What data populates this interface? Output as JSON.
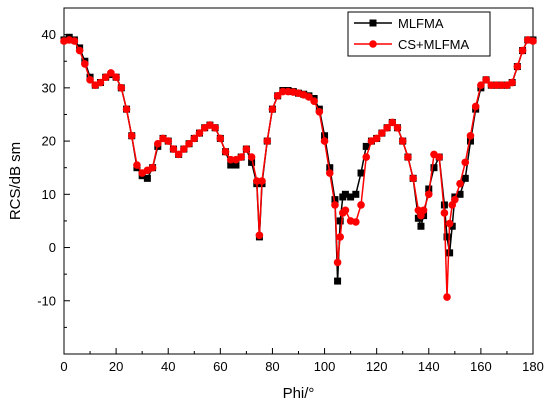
{
  "chart_data": {
    "type": "line",
    "title": "",
    "xlabel": "Phi/°",
    "ylabel": "RCS/dB sm",
    "xlim": [
      0,
      180
    ],
    "ylim": [
      -20,
      45
    ],
    "xticks": [
      "0",
      "20",
      "40",
      "60",
      "80",
      "100",
      "120",
      "140",
      "160",
      "180"
    ],
    "xtick_values": [
      0,
      20,
      40,
      60,
      80,
      100,
      120,
      140,
      160,
      180
    ],
    "yticks": [
      "-10",
      "0",
      "10",
      "20",
      "30",
      "40"
    ],
    "ytick_values": [
      -10,
      0,
      10,
      20,
      30,
      40
    ],
    "grid": false,
    "legend_position": "top-right",
    "series": [
      {
        "name": "MLFMA",
        "color": "#000000",
        "marker": "square",
        "x": [
          0,
          2,
          4,
          6,
          8,
          10,
          12,
          14,
          16,
          18,
          20,
          22,
          24,
          26,
          28,
          30,
          32,
          34,
          36,
          38,
          40,
          42,
          44,
          46,
          48,
          50,
          52,
          54,
          56,
          58,
          60,
          62,
          64,
          66,
          68,
          70,
          72,
          74,
          75,
          76,
          78,
          80,
          82,
          84,
          86,
          88,
          90,
          92,
          94,
          96,
          98,
          100,
          102,
          104,
          105,
          106,
          107,
          108,
          110,
          112,
          114,
          116,
          118,
          120,
          122,
          124,
          126,
          128,
          130,
          132,
          134,
          136,
          137,
          138,
          140,
          142,
          144,
          146,
          147,
          148,
          149,
          150,
          152,
          154,
          156,
          158,
          160,
          162,
          164,
          166,
          168,
          170,
          172,
          174,
          176,
          178,
          180
        ],
        "y": [
          39,
          39.5,
          39,
          37.5,
          35,
          32,
          30.5,
          31,
          32,
          32.5,
          32,
          30,
          26,
          21,
          15,
          13.5,
          13,
          15,
          19,
          20.5,
          20,
          18.5,
          17.5,
          18.5,
          19.5,
          20.5,
          21.5,
          22.5,
          23,
          22.5,
          20.5,
          18,
          15.5,
          15.5,
          17,
          18.5,
          16,
          12,
          2,
          12,
          20,
          26,
          28.5,
          29.5,
          29.5,
          29.3,
          29,
          28.8,
          28.5,
          28,
          26,
          21,
          15,
          9,
          -6.3,
          5,
          9.5,
          10,
          9.5,
          10,
          14,
          19,
          20,
          20.5,
          21.5,
          22.5,
          23.5,
          22.5,
          20,
          17,
          13,
          5.5,
          4,
          6,
          11,
          15,
          17,
          8,
          2,
          -1,
          4,
          9.5,
          10,
          13,
          20,
          26,
          30,
          31.5,
          30.5,
          30.5,
          30.5,
          30.5,
          31,
          34,
          37,
          39,
          39
        ]
      },
      {
        "name": "CS+MLFMA",
        "color": "#ff0000",
        "marker": "circle",
        "x": [
          0,
          2,
          4,
          6,
          8,
          10,
          12,
          14,
          16,
          18,
          20,
          22,
          24,
          26,
          28,
          30,
          32,
          34,
          36,
          38,
          40,
          42,
          44,
          46,
          48,
          50,
          52,
          54,
          56,
          58,
          60,
          62,
          64,
          66,
          68,
          70,
          72,
          74,
          75,
          76,
          78,
          80,
          82,
          84,
          86,
          88,
          90,
          92,
          94,
          96,
          98,
          100,
          102,
          104,
          105,
          106,
          107,
          108,
          110,
          112,
          114,
          116,
          118,
          120,
          122,
          124,
          126,
          128,
          130,
          132,
          134,
          136,
          137,
          138,
          140,
          142,
          144,
          146,
          147,
          148,
          149,
          150,
          152,
          154,
          156,
          158,
          160,
          162,
          164,
          166,
          168,
          170,
          172,
          174,
          176,
          178,
          180
        ],
        "y": [
          38.8,
          39,
          38.8,
          37,
          34.5,
          31.5,
          30.5,
          31,
          32,
          32.8,
          32,
          30,
          26,
          21,
          15.5,
          14,
          14.5,
          15,
          19.5,
          20.5,
          20,
          18.5,
          17.5,
          18.5,
          19.5,
          20.5,
          21.5,
          22.5,
          23,
          22.5,
          20.5,
          18,
          16.5,
          16.5,
          17,
          18.5,
          17,
          12.5,
          2.3,
          12.5,
          20,
          26,
          28.5,
          29.3,
          29.3,
          29.2,
          29,
          28.7,
          28.3,
          27.5,
          25.5,
          20,
          14,
          8,
          -2.8,
          2,
          6.5,
          7,
          5,
          4.8,
          8,
          17,
          20,
          20.5,
          21.5,
          22.5,
          23.5,
          22.5,
          20,
          17,
          13,
          7,
          6,
          7,
          10,
          17.5,
          17,
          6.5,
          -9.3,
          4.5,
          8,
          9,
          12,
          16,
          21,
          26.5,
          30.5,
          31.5,
          30.5,
          30.5,
          30.5,
          30.5,
          31,
          34,
          37,
          39,
          38.8
        ]
      }
    ]
  }
}
